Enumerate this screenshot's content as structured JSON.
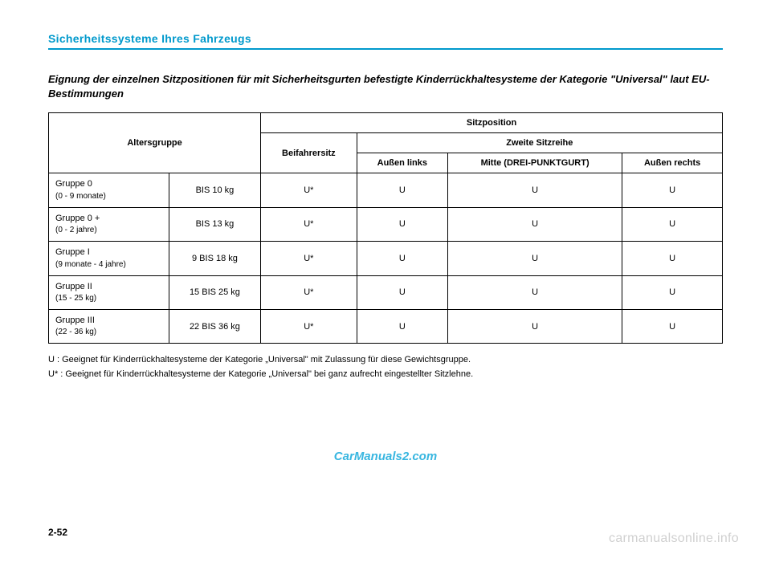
{
  "header": "Sicherheitssysteme Ihres Fahrzeugs",
  "title": "Eignung der einzelnen Sitzpositionen für mit Sicherheitsgurten befestigte Kinderrückhaltesysteme der Kategorie \"Universal\" laut EU-Bestimmungen",
  "table": {
    "h_altersgruppe": "Altersgruppe",
    "h_sitzposition": "Sitzposition",
    "h_beifahrer": "Beifahrersitz",
    "h_zweite": "Zweite Sitzreihe",
    "h_links": "Außen links",
    "h_mitte": "Mitte (DREI-PUNKTGURT)",
    "h_rechts": "Außen rechts",
    "rows": [
      {
        "name": "Gruppe 0",
        "sub": "(0 - 9 monate)",
        "w": "BIS 10 kg",
        "c1": "U*",
        "c2": "U",
        "c3": "U",
        "c4": "U"
      },
      {
        "name": "Gruppe 0 +",
        "sub": "(0 - 2 jahre)",
        "w": "BIS 13 kg",
        "c1": "U*",
        "c2": "U",
        "c3": "U",
        "c4": "U"
      },
      {
        "name": "Gruppe I",
        "sub": "(9 monate - 4 jahre)",
        "w": "9 BIS 18 kg",
        "c1": "U*",
        "c2": "U",
        "c3": "U",
        "c4": "U"
      },
      {
        "name": "Gruppe II",
        "sub": "(15 - 25 kg)",
        "w": "15 BIS 25 kg",
        "c1": "U*",
        "c2": "U",
        "c3": "U",
        "c4": "U"
      },
      {
        "name": "Gruppe III",
        "sub": "(22 - 36 kg)",
        "w": "22 BIS 36 kg",
        "c1": "U*",
        "c2": "U",
        "c3": "U",
        "c4": "U"
      }
    ]
  },
  "legend": {
    "u": "U   : Geeignet für Kinderrückhaltesysteme der Kategorie „Universal\" mit Zulassung für diese Gewichtsgruppe.",
    "us": "U* : Geeignet für Kinderrückhaltesysteme der Kategorie „Universal\" bei ganz aufrecht eingestellter Sitzlehne."
  },
  "watermark1": "CarManuals2.com",
  "watermark2": "carmanualsonline.info",
  "page": "2-52"
}
